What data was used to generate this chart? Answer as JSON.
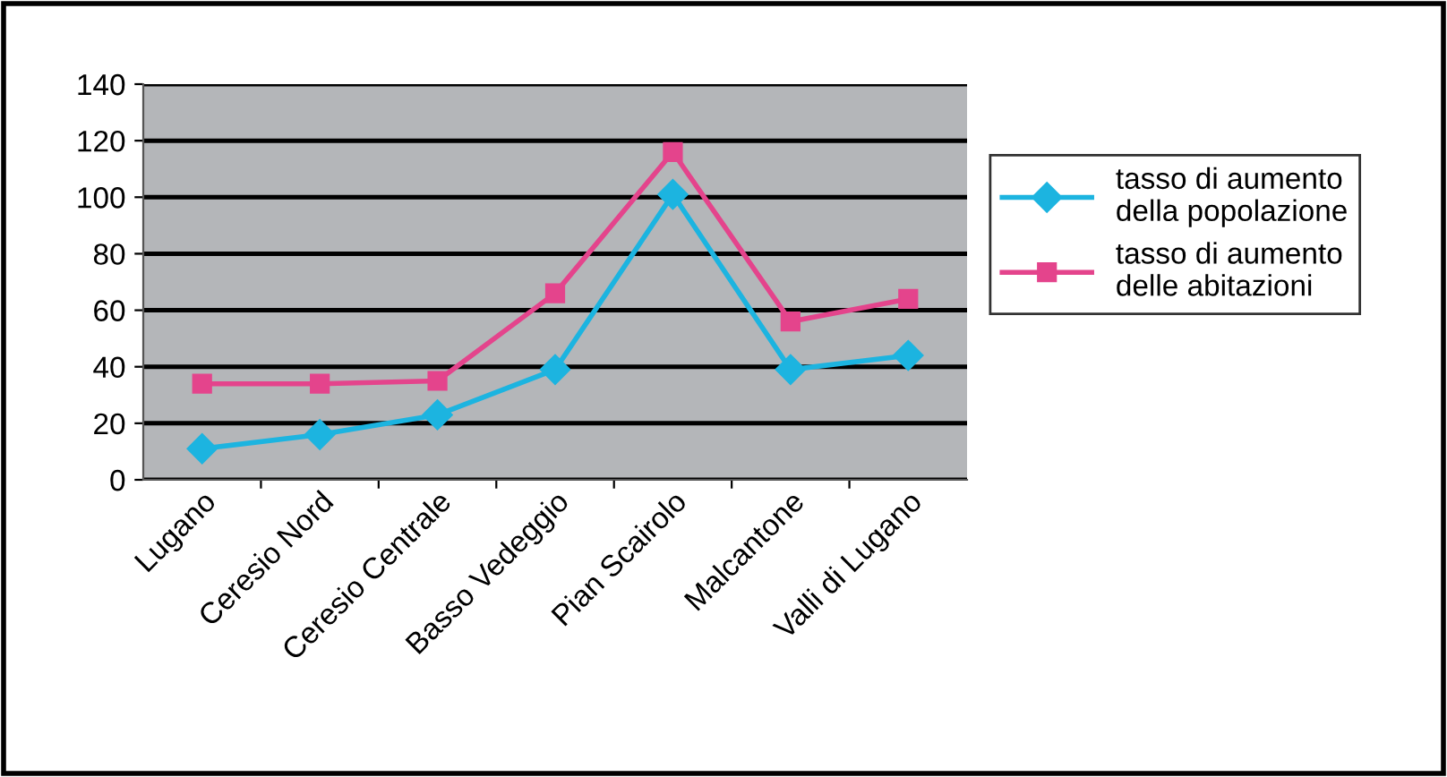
{
  "chart_data": {
    "type": "line",
    "categories": [
      "Lugano",
      "Ceresio Nord",
      "Ceresio Centrale",
      "Basso Vedeggio",
      "Pian Scairolo",
      "Malcantone",
      "Valli di Lugano"
    ],
    "series": [
      {
        "name": "tasso di aumento\ndella popolazione",
        "color": "#1cb4e0",
        "marker": "diamond",
        "values": [
          11,
          16,
          23,
          39,
          101,
          39,
          44
        ]
      },
      {
        "name": "tasso di aumento\ndelle abitazioni",
        "color": "#e4448c",
        "marker": "square",
        "values": [
          34,
          34,
          35,
          66,
          116,
          56,
          64
        ]
      }
    ],
    "ylim": [
      0,
      140
    ],
    "yticks": [
      0,
      20,
      40,
      60,
      80,
      100,
      120,
      140
    ],
    "grid": "y",
    "legend": "right"
  }
}
